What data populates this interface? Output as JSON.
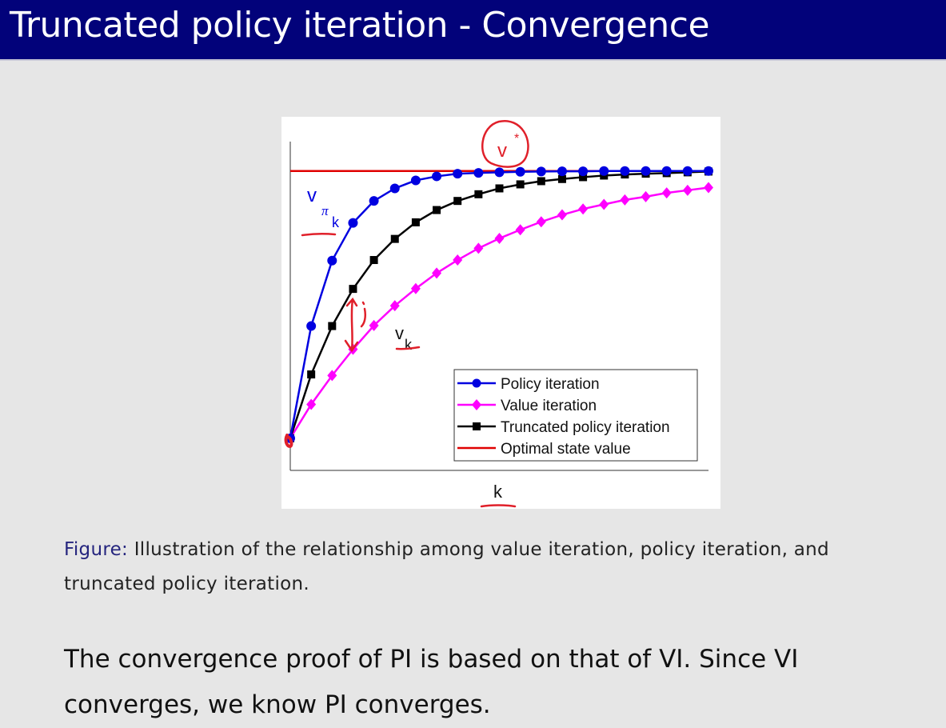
{
  "slide": {
    "title": "Truncated policy iteration - Convergence",
    "caption_label": "Figure:",
    "caption_text": "Illustration of the relationship among value iteration, policy iteration, and truncated policy iteration.",
    "body_text": "The convergence proof of PI is based on that of VI. Since VI converges, we know PI converges."
  },
  "colors": {
    "title_bar": "#02027a",
    "policy": "#0000e0",
    "value": "#ff00ff",
    "truncated": "#000000",
    "optimal": "#e00000",
    "ink": "#e0202a"
  },
  "chart_data": {
    "type": "line",
    "title": "",
    "xlabel": "k",
    "ylabel": "",
    "x": [
      0,
      1,
      2,
      3,
      4,
      5,
      6,
      7,
      8,
      9,
      10,
      11,
      12,
      13,
      14,
      15,
      16,
      17,
      18,
      19,
      20
    ],
    "xlim": [
      0,
      20
    ],
    "ylim": [
      -0.12,
      1.11
    ],
    "grid": false,
    "legend_position": "bottom-right",
    "series": [
      {
        "name": "Policy iteration",
        "marker": "circle",
        "color": "#0000e0",
        "values": [
          0,
          0.42,
          0.665,
          0.806,
          0.888,
          0.935,
          0.965,
          0.98,
          0.99,
          0.993,
          0.995,
          0.997,
          0.998,
          0.999,
          0.999,
          1,
          1,
          1,
          1,
          1,
          1
        ]
      },
      {
        "name": "Value iteration",
        "marker": "diamond",
        "color": "#ff00ff",
        "values": [
          0,
          0.127,
          0.235,
          0.333,
          0.422,
          0.496,
          0.56,
          0.618,
          0.667,
          0.711,
          0.748,
          0.78,
          0.81,
          0.836,
          0.858,
          0.875,
          0.892,
          0.904,
          0.918,
          0.928,
          0.938
        ]
      },
      {
        "name": "Truncated policy iteration",
        "marker": "square",
        "color": "#000000",
        "values": [
          0,
          0.239,
          0.42,
          0.559,
          0.667,
          0.746,
          0.808,
          0.854,
          0.888,
          0.913,
          0.935,
          0.95,
          0.962,
          0.97,
          0.977,
          0.983,
          0.987,
          0.99,
          0.992,
          0.995,
          0.998
        ]
      },
      {
        "name": "Optimal state value",
        "marker": "none",
        "color": "#e00000",
        "constant": 1
      }
    ],
    "annotations": {
      "policy_label": "v",
      "policy_sub1": "π",
      "policy_sub2": "k",
      "value_label": "v",
      "value_sub": "k",
      "optimal_handwritten": "v",
      "optimal_star": "*"
    }
  }
}
